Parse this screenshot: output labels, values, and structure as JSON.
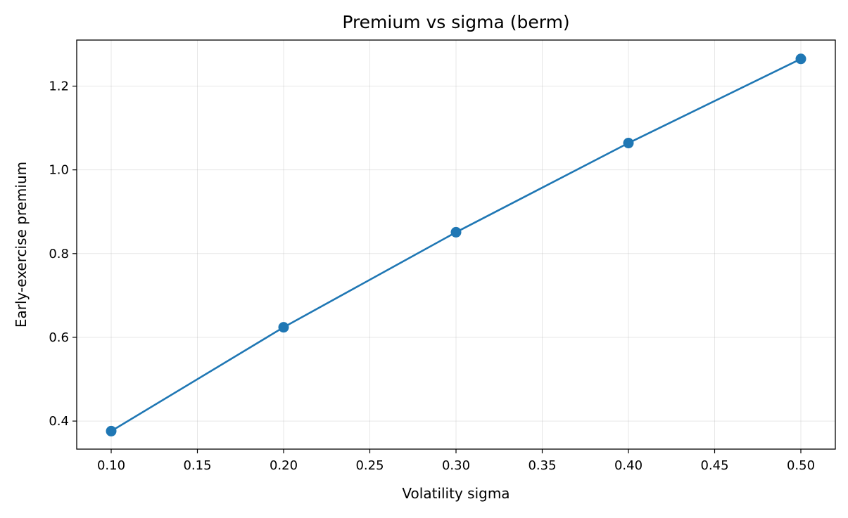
{
  "chart_data": {
    "type": "line",
    "title": "Premium vs sigma (berm)",
    "xlabel": "Volatility sigma",
    "ylabel": "Early-exercise premium",
    "xlim": [
      0.08,
      0.52
    ],
    "ylim": [
      0.333,
      1.31
    ],
    "xticks": [
      0.1,
      0.15,
      0.2,
      0.25,
      0.3,
      0.35,
      0.4,
      0.45,
      0.5
    ],
    "xtick_labels": [
      "0.10",
      "0.15",
      "0.20",
      "0.25",
      "0.30",
      "0.35",
      "0.40",
      "0.45",
      "0.50"
    ],
    "yticks": [
      0.4,
      0.6,
      0.8,
      1.0,
      1.2
    ],
    "ytick_labels": [
      "0.4",
      "0.6",
      "0.8",
      "1.0",
      "1.2"
    ],
    "grid": true,
    "series": [
      {
        "color": "#1f77b4",
        "marker": "circle",
        "x": [
          0.1,
          0.2,
          0.3,
          0.4,
          0.5
        ],
        "y": [
          0.376,
          0.624,
          0.851,
          1.064,
          1.265
        ]
      }
    ]
  }
}
